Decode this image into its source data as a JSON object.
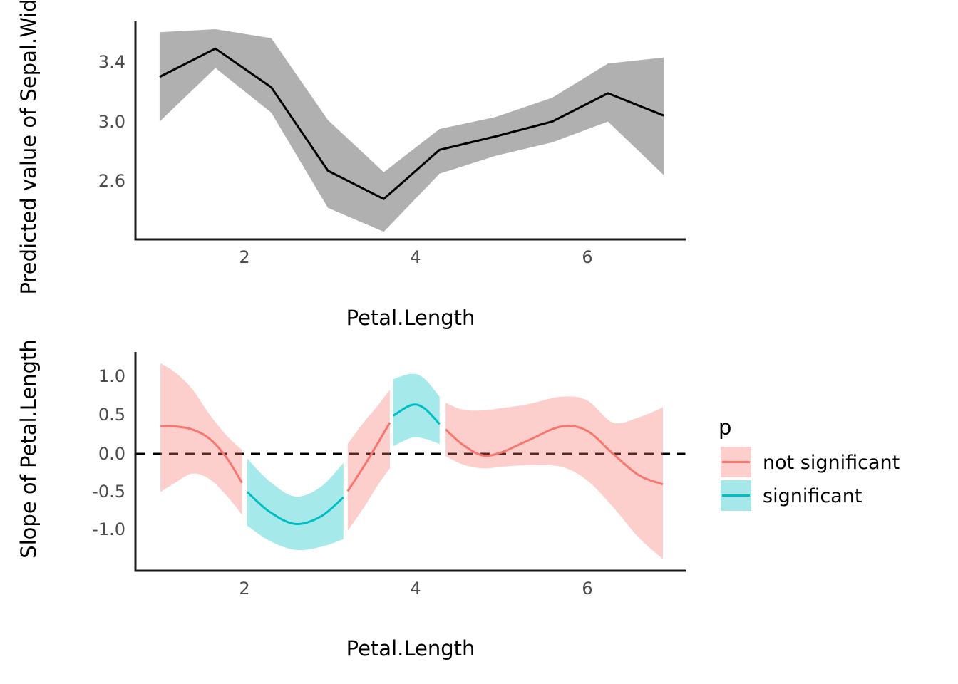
{
  "colors": {
    "not_significant_line": "#F8766D",
    "significant_line": "#00BFC4",
    "not_significant_fill": "#FCCFCC",
    "significant_fill": "#A6E8EA",
    "gray_ribbon_base": "#000000",
    "axis_text": "#4D4D4D",
    "axis_line": "#1A1A1A",
    "zero_line": "#000000"
  },
  "top_panel": {
    "y_axis_title": "Predicted value of Sepal.Width",
    "x_axis_title": "Petal.Length",
    "y_tick_labels": [
      "3.4",
      "3.0",
      "2.6"
    ],
    "x_tick_labels": [
      "2",
      "4",
      "6"
    ]
  },
  "bottom_panel": {
    "y_axis_title": "Slope of Petal.Length",
    "x_axis_title": "Petal.Length",
    "y_tick_labels": [
      "1.0",
      "0.5",
      "0.0",
      "-0.5",
      "-1.0"
    ],
    "x_tick_labels": [
      "2",
      "4",
      "6"
    ]
  },
  "legend": {
    "title": "p",
    "items": [
      {
        "label": "not significant"
      },
      {
        "label": "significant"
      }
    ]
  },
  "chart_data": [
    {
      "type": "line",
      "title": "",
      "xlabel": "Petal.Length",
      "ylabel": "Predicted value of Sepal.Width",
      "x": [
        1.02,
        1.67,
        2.32,
        2.98,
        3.63,
        4.28,
        4.93,
        5.59,
        6.24,
        6.89
      ],
      "series": [
        {
          "name": "predicted",
          "values": [
            3.3,
            3.49,
            3.23,
            2.67,
            2.48,
            2.81,
            2.9,
            3.0,
            3.19,
            3.04
          ]
        },
        {
          "name": "conf_low",
          "values": [
            3.0,
            3.36,
            3.06,
            2.42,
            2.26,
            2.65,
            2.77,
            2.86,
            3.0,
            2.64
          ]
        },
        {
          "name": "conf_high",
          "values": [
            3.6,
            3.62,
            3.56,
            3.01,
            2.66,
            2.95,
            3.03,
            3.16,
            3.39,
            3.43
          ]
        }
      ],
      "x_ticks": [
        2,
        4,
        6
      ],
      "y_ticks": [
        3.4,
        3.0,
        2.6
      ],
      "xlim": [
        0.74,
        7.15
      ],
      "ylim": [
        2.22,
        3.67
      ],
      "grid": false,
      "curve": "linear",
      "legend_position": "none"
    },
    {
      "type": "area",
      "title": "",
      "xlabel": "Petal.Length",
      "ylabel": "Slope of Petal.Length",
      "hline": 0,
      "hline_style": "dashed",
      "x_ticks": [
        2,
        4,
        6
      ],
      "y_ticks": [
        1.0,
        0.5,
        0.0,
        -0.5,
        -1.0
      ],
      "xlim": [
        0.74,
        7.15
      ],
      "ylim": [
        -1.53,
        1.33
      ],
      "grid": false,
      "curve": "smooth",
      "legend_position": "right",
      "legend_title": "p",
      "segments": [
        {
          "p": "not significant",
          "x": [
            1.03,
            1.2,
            1.4,
            1.6,
            1.8,
            1.98
          ],
          "slope": [
            0.36,
            0.36,
            0.32,
            0.2,
            -0.05,
            -0.38
          ],
          "low": [
            -0.5,
            -0.38,
            -0.26,
            -0.33,
            -0.55,
            -0.8
          ],
          "high": [
            1.19,
            1.07,
            0.85,
            0.52,
            0.24,
            0.05
          ]
        },
        {
          "p": "significant",
          "x": [
            2.04,
            2.3,
            2.6,
            2.9,
            3.16
          ],
          "slope": [
            -0.5,
            -0.76,
            -0.92,
            -0.82,
            -0.57
          ],
          "low": [
            -0.94,
            -1.14,
            -1.26,
            -1.22,
            -1.12
          ],
          "high": [
            -0.06,
            -0.36,
            -0.56,
            -0.43,
            -0.12
          ]
        },
        {
          "p": "not significant",
          "x": [
            3.21,
            3.4,
            3.55,
            3.7
          ],
          "slope": [
            -0.49,
            -0.16,
            0.12,
            0.41
          ],
          "low": [
            -1.01,
            -0.7,
            -0.43,
            -0.19
          ],
          "high": [
            0.13,
            0.42,
            0.62,
            0.84
          ]
        },
        {
          "p": "significant",
          "x": [
            3.74,
            3.95,
            4.1,
            4.28
          ],
          "slope": [
            0.5,
            0.64,
            0.6,
            0.39
          ],
          "low": [
            0.1,
            0.21,
            0.2,
            0.13
          ],
          "high": [
            0.98,
            1.05,
            0.99,
            0.75
          ]
        },
        {
          "p": "not significant",
          "x": [
            4.35,
            4.55,
            4.78,
            5.0,
            5.3,
            5.7,
            6.0,
            6.3,
            6.6,
            6.88
          ],
          "slope": [
            0.32,
            0.12,
            -0.02,
            0.02,
            0.17,
            0.36,
            0.3,
            0.0,
            -0.28,
            -0.4
          ],
          "low": [
            -0.03,
            -0.14,
            -0.19,
            -0.17,
            -0.15,
            -0.17,
            -0.35,
            -0.7,
            -1.1,
            -1.38
          ],
          "high": [
            0.67,
            0.58,
            0.57,
            0.6,
            0.65,
            0.75,
            0.7,
            0.41,
            0.48,
            0.61
          ]
        }
      ]
    }
  ]
}
